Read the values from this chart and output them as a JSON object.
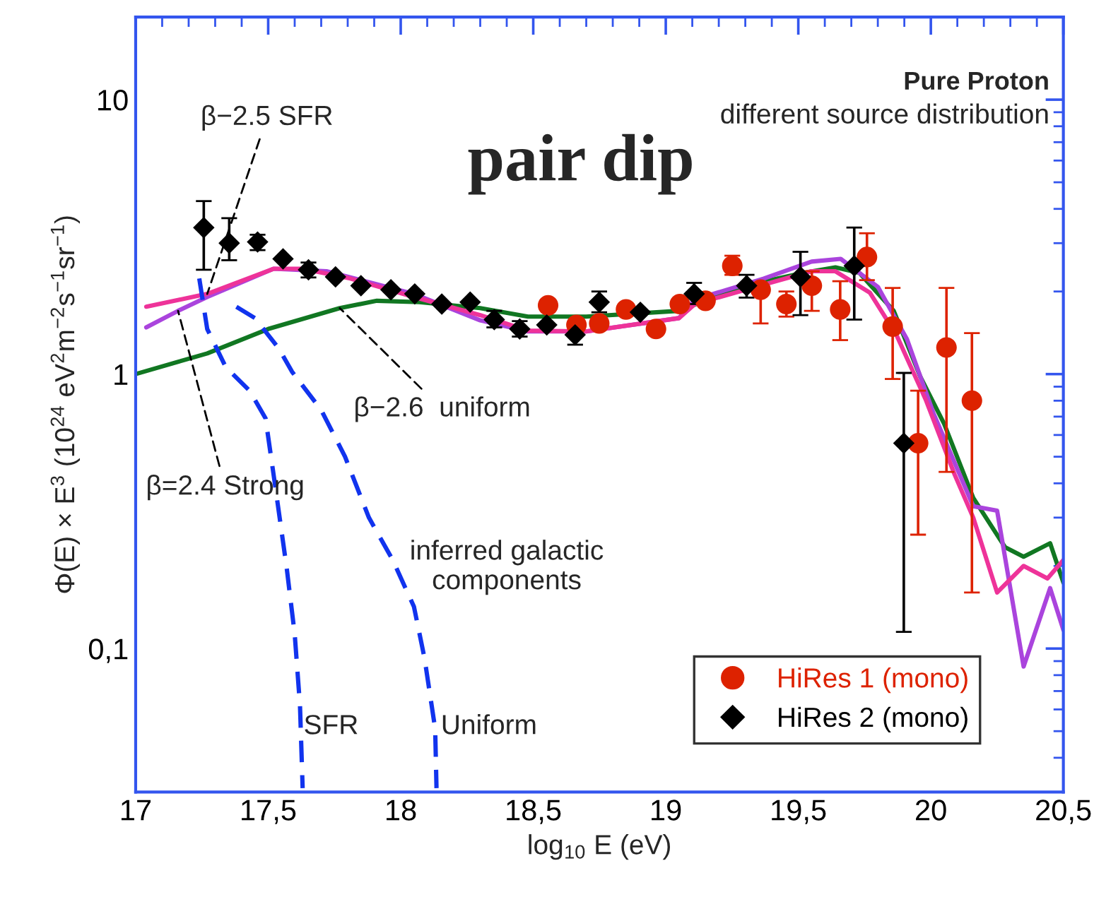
{
  "chart_data": {
    "type": "line",
    "title": "Pure Proton",
    "subtitle": "different source distribution",
    "xlabel": "log$_{10}$ E (eV)",
    "ylabel": "Φ(E) × E$^{3}$ (10$^{24}$ eV$^{2}$m$^{−2}$s$^{−1}$sr$^{−1}$)",
    "log": "y",
    "xlim": [
      17,
      20.5
    ],
    "ylim": [
      0.03,
      20
    ],
    "xticks": [
      17,
      {
        "value": 17.5,
        "label": "17,5"
      },
      18,
      {
        "value": 18.5,
        "label": "18,5"
      },
      19,
      {
        "value": 19.5,
        "label": "19,5"
      },
      20,
      {
        "value": 20.5,
        "label": "20,5"
      }
    ],
    "yticks": [
      {
        "value": 0.1,
        "label": "0,1"
      },
      1,
      10
    ],
    "grid": false,
    "legend": "bottom right",
    "series": [
      {
        "color": "#117722",
        "marker": "none",
        "line_style": "solid",
        "x": [
          17.0,
          17.27,
          17.5,
          17.77,
          17.91,
          18.07,
          18.3,
          18.48,
          18.7,
          19.05,
          19.28,
          19.52,
          19.64,
          19.73,
          19.86,
          19.96,
          20.05,
          20.16,
          20.28,
          20.35,
          20.45,
          20.5
        ],
        "values": [
          1.0,
          1.19,
          1.46,
          1.74,
          1.85,
          1.83,
          1.74,
          1.62,
          1.62,
          1.7,
          2.08,
          2.34,
          2.45,
          2.34,
          1.7,
          0.98,
          0.66,
          0.354,
          0.234,
          0.216,
          0.242,
          0.174
        ]
      },
      {
        "color": "#aa44dd",
        "marker": "none",
        "line_style": "solid",
        "x": [
          17.04,
          17.16,
          17.27,
          17.52,
          17.72,
          18.05,
          18.3,
          18.48,
          18.7,
          19.05,
          19.11,
          19.37,
          19.55,
          19.66,
          19.8,
          19.91,
          20.01,
          20.16,
          20.25,
          20.35,
          20.45,
          20.5
        ],
        "values": [
          1.48,
          1.7,
          1.91,
          2.42,
          2.37,
          1.96,
          1.57,
          1.43,
          1.43,
          1.6,
          1.87,
          2.23,
          2.57,
          2.63,
          2.08,
          1.34,
          0.72,
          0.33,
          0.318,
          0.086,
          0.166,
          0.117
        ]
      },
      {
        "color": "#ee3399",
        "marker": "none",
        "line_style": "solid",
        "x": [
          17.04,
          17.27,
          17.52,
          17.63,
          17.81,
          18.05,
          18.3,
          18.48,
          18.7,
          19.05,
          19.11,
          19.34,
          19.55,
          19.64,
          19.77,
          19.87,
          19.98,
          20.09,
          20.16,
          20.25,
          20.35,
          20.44,
          20.5
        ],
        "values": [
          1.76,
          1.96,
          2.42,
          2.42,
          2.23,
          1.91,
          1.64,
          1.44,
          1.43,
          1.6,
          1.8,
          2.08,
          2.37,
          2.37,
          1.98,
          1.39,
          0.81,
          0.43,
          0.3,
          0.16,
          0.2,
          0.18,
          0.21
        ]
      },
      {
        "color": "#1133ee",
        "marker": "none",
        "line_style": "dashed",
        "x": [
          17.24,
          17.27,
          17.34,
          17.43,
          17.49,
          17.53,
          17.57,
          17.6,
          17.62,
          17.63
        ],
        "values": [
          2.23,
          1.46,
          1.06,
          0.87,
          0.69,
          0.37,
          0.196,
          0.113,
          0.062,
          0.031
        ]
      },
      {
        "color": "#1133ee",
        "marker": "none",
        "line_style": "dashed",
        "x": [
          17.38,
          17.45,
          17.54,
          17.59,
          17.7,
          17.79,
          17.88,
          17.97,
          18.05,
          18.09,
          18.13,
          18.135
        ],
        "values": [
          1.76,
          1.6,
          1.24,
          1.02,
          0.74,
          0.5,
          0.3,
          0.21,
          0.142,
          0.092,
          0.051,
          0.031
        ]
      },
      {
        "type": "scatter",
        "name": "HiRes 1 (mono)",
        "color": "#dd2200",
        "marker": "circle",
        "x": [
          18.556,
          18.663,
          18.749,
          18.85,
          18.963,
          19.053,
          19.15,
          19.251,
          19.358,
          19.455,
          19.551,
          19.658,
          19.759,
          19.856,
          19.952,
          20.059,
          20.155
        ],
        "values": [
          1.78,
          1.51,
          1.53,
          1.72,
          1.46,
          1.8,
          1.85,
          2.48,
          2.03,
          1.8,
          2.1,
          1.72,
          2.67,
          1.49,
          0.56,
          1.25,
          0.8
        ],
        "errors": [
          null,
          null,
          null,
          null,
          null,
          null,
          null,
          [
            2.3,
            2.7
          ],
          [
            1.53,
            2.03
          ],
          [
            1.62,
            2.0
          ],
          [
            1.7,
            2.37
          ],
          [
            1.33,
            2.18
          ],
          [
            2.2,
            3.26
          ],
          [
            0.96,
            2.06
          ],
          [
            0.26,
            0.87
          ],
          [
            0.44,
            2.06
          ],
          [
            0.16,
            1.41
          ]
        ]
      },
      {
        "type": "scatter",
        "name": "HiRes 2 (mono)",
        "color": "#000000",
        "marker": "diamond",
        "x": [
          17.257,
          17.353,
          17.46,
          17.556,
          17.652,
          17.754,
          17.85,
          17.963,
          18.053,
          18.155,
          18.262,
          18.353,
          18.449,
          18.551,
          18.658,
          18.749,
          18.904,
          19.107,
          19.305,
          19.508,
          19.711,
          19.898
        ],
        "values": [
          3.42,
          3.0,
          3.03,
          2.63,
          2.4,
          2.26,
          2.1,
          2.03,
          1.96,
          1.8,
          1.83,
          1.58,
          1.46,
          1.51,
          1.39,
          1.83,
          1.68,
          1.96,
          2.1,
          2.26,
          2.48,
          0.56
        ],
        "errors": [
          [
            2.4,
            4.27
          ],
          [
            2.6,
            3.7
          ],
          [
            2.83,
            3.22
          ],
          null,
          [
            2.25,
            2.55
          ],
          null,
          null,
          null,
          null,
          null,
          null,
          [
            1.48,
            1.7
          ],
          [
            1.37,
            1.56
          ],
          null,
          [
            1.28,
            1.52
          ],
          [
            1.68,
            2.0
          ],
          null,
          [
            1.8,
            2.15
          ],
          [
            1.9,
            2.3
          ],
          [
            1.64,
            2.79
          ],
          [
            1.58,
            3.42
          ],
          [
            0.115,
            1.01
          ]
        ]
      }
    ],
    "annotations": [
      "pair dip",
      {
        "text": "β−2.5 SFR",
        "x": 17.27,
        "y": 1.96
      },
      {
        "text": "β−2.6  uniform",
        "x": 17.77,
        "y": 1.74
      },
      {
        "text": "β=2.4 Strong",
        "x": 17.16,
        "y": 1.7
      },
      "inferred galactic\ncomponents",
      "SFR",
      "Uniform"
    ]
  }
}
